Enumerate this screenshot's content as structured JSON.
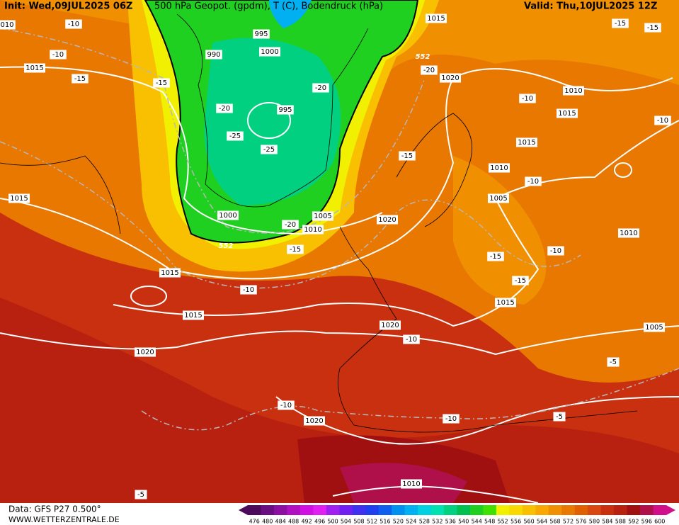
{
  "header": {
    "init": "Init: Wed,09JUL2025 06Z",
    "title": "500 hPa Geopot. (gpdm), T (C), Bodendruck (hPa)",
    "valid": "Valid: Thu,10JUL2025 12Z"
  },
  "footer": {
    "data": "Data: GFS P27 0.500°",
    "site": "WWW.WETTERZENTRALE.DE"
  },
  "colorbar": {
    "labels": [
      "476",
      "480",
      "484",
      "488",
      "492",
      "496",
      "500",
      "504",
      "508",
      "512",
      "516",
      "520",
      "524",
      "528",
      "532",
      "536",
      "540",
      "544",
      "548",
      "552",
      "556",
      "560",
      "564",
      "568",
      "572",
      "576",
      "580",
      "584",
      "588",
      "592",
      "596",
      "600"
    ],
    "colors": [
      "#4b0b5a",
      "#6a0d83",
      "#8b0fa0",
      "#b010c0",
      "#d010e0",
      "#e020f0",
      "#a020f0",
      "#7020f0",
      "#4030f0",
      "#2040f0",
      "#1060f0",
      "#0090f0",
      "#00b0f0",
      "#00d0e0",
      "#00e0b0",
      "#00d080",
      "#00c050",
      "#20d020",
      "#40e000",
      "#f0f000",
      "#f8d800",
      "#f8c000",
      "#f8a800",
      "#f09000",
      "#e87800",
      "#e06000",
      "#d84810",
      "#c83010",
      "#b82010",
      "#a01010",
      "#b0104a",
      "#d0108a"
    ]
  },
  "map_labels": [
    "010",
    "-10",
    "-10",
    "1015",
    "-15",
    "-15",
    "995",
    "990",
    "1000",
    "-20",
    "-20",
    "995",
    "-25",
    "-25",
    "1015",
    "552",
    "-20",
    "1020",
    "-15",
    "-15",
    "1010",
    "-10",
    "1015",
    "-10",
    "1015",
    "-15",
    "1010",
    "-10",
    "1005",
    "1015",
    "1000",
    "1005",
    "1010",
    "-20",
    "1020",
    "552",
    "-15",
    "-10",
    "-15",
    "1010",
    "1015",
    "-15",
    "-10",
    "1015",
    "1015",
    "1020",
    "-10",
    "1005",
    "1020",
    "-5",
    "-10",
    "-10",
    "-5",
    "1020",
    "1010",
    "-5"
  ]
}
